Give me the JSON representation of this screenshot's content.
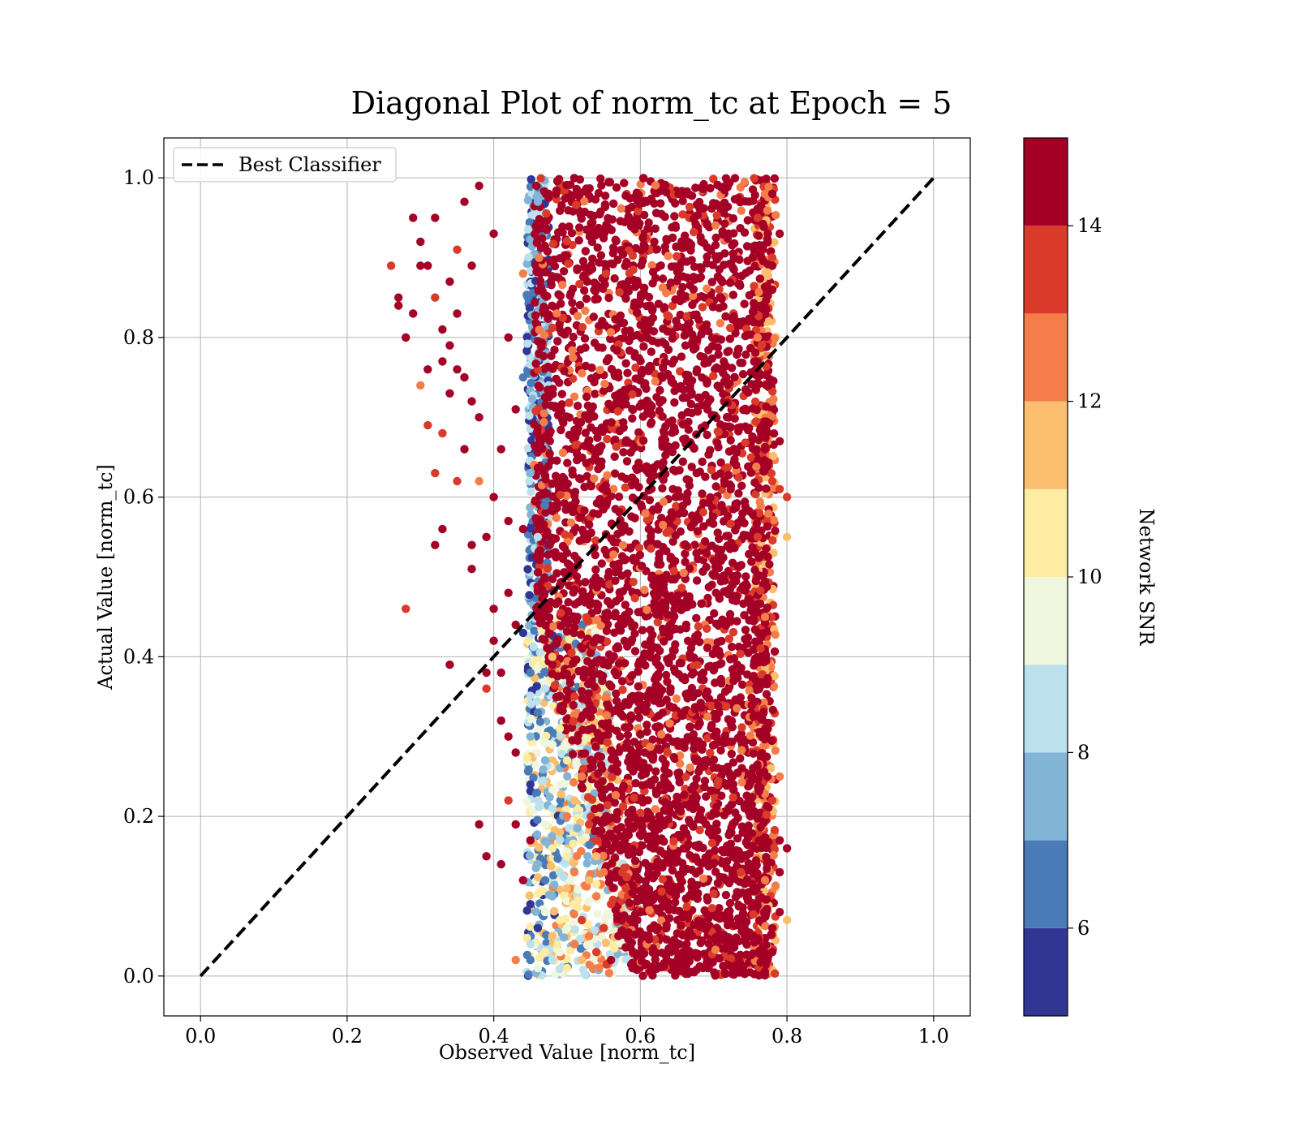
{
  "chart_data": {
    "type": "scatter",
    "title": "Diagonal Plot of norm_tc at Epoch = 5",
    "xlabel": "Observed Value [norm_tc]",
    "ylabel": "Actual Value [norm_tc]",
    "xlim": [
      -0.05,
      1.05
    ],
    "ylim": [
      -0.05,
      1.05
    ],
    "x_ticks": [
      "0.0",
      "0.2",
      "0.4",
      "0.6",
      "0.8",
      "1.0"
    ],
    "y_ticks": [
      "0.0",
      "0.2",
      "0.4",
      "0.6",
      "0.8",
      "1.0"
    ],
    "grid": true,
    "legend": {
      "position": "top-left",
      "entries": [
        "Best Classifier"
      ]
    },
    "reference_line": {
      "name": "Best Classifier",
      "style": "dashed",
      "color": "#000000",
      "x": [
        0,
        1
      ],
      "y": [
        0,
        1
      ]
    },
    "colorbar": {
      "label": "Network SNR",
      "range": [
        5,
        15
      ],
      "tick_labels": [
        "6",
        "8",
        "10",
        "12",
        "14"
      ],
      "bins": [
        {
          "from": 5,
          "to": 6,
          "color": "#313695"
        },
        {
          "from": 6,
          "to": 7,
          "color": "#4a7bb7"
        },
        {
          "from": 7,
          "to": 8,
          "color": "#82b4d6"
        },
        {
          "from": 8,
          "to": 9,
          "color": "#bde1ec"
        },
        {
          "from": 9,
          "to": 10,
          "color": "#eef7de"
        },
        {
          "from": 10,
          "to": 11,
          "color": "#fdeca2"
        },
        {
          "from": 11,
          "to": 12,
          "color": "#fbbe6e"
        },
        {
          "from": 12,
          "to": 13,
          "color": "#f57d4a"
        },
        {
          "from": 13,
          "to": 14,
          "color": "#d93a2a"
        },
        {
          "from": 14,
          "to": 15,
          "color": "#a50026"
        }
      ]
    },
    "scatter_regions": [
      {
        "name": "dense-core",
        "x_range": [
          0.44,
          0.78
        ],
        "y_range": [
          0.0,
          1.0
        ],
        "dominant_snr": "14+"
      },
      {
        "name": "low-snr-band",
        "x_range": [
          0.44,
          0.6
        ],
        "y_range": [
          0.0,
          0.45
        ],
        "dominant_snr": "5-11"
      },
      {
        "name": "upper-left-outliers",
        "x_range": [
          0.25,
          0.44
        ],
        "y_range": [
          0.45,
          1.0
        ],
        "dominant_snr": "12-15"
      }
    ],
    "points": [
      [
        0.26,
        0.89,
        13
      ],
      [
        0.27,
        0.85,
        15
      ],
      [
        0.27,
        0.84,
        15
      ],
      [
        0.28,
        0.8,
        15
      ],
      [
        0.28,
        0.46,
        13
      ],
      [
        0.29,
        0.95,
        15
      ],
      [
        0.29,
        0.83,
        15
      ],
      [
        0.3,
        0.92,
        15
      ],
      [
        0.3,
        0.89,
        15
      ],
      [
        0.3,
        0.74,
        12
      ],
      [
        0.31,
        0.76,
        15
      ],
      [
        0.31,
        0.89,
        15
      ],
      [
        0.31,
        0.69,
        13
      ],
      [
        0.32,
        0.54,
        15
      ],
      [
        0.32,
        0.63,
        13
      ],
      [
        0.32,
        0.95,
        15
      ],
      [
        0.32,
        0.85,
        13
      ],
      [
        0.33,
        0.81,
        15
      ],
      [
        0.33,
        0.77,
        15
      ],
      [
        0.33,
        0.68,
        13
      ],
      [
        0.33,
        0.56,
        15
      ],
      [
        0.34,
        0.79,
        15
      ],
      [
        0.34,
        0.39,
        15
      ],
      [
        0.34,
        0.73,
        15
      ],
      [
        0.34,
        0.87,
        15
      ],
      [
        0.35,
        0.91,
        13
      ],
      [
        0.35,
        0.62,
        13
      ],
      [
        0.35,
        0.76,
        15
      ],
      [
        0.35,
        0.83,
        15
      ],
      [
        0.36,
        0.66,
        15
      ],
      [
        0.36,
        0.97,
        15
      ],
      [
        0.36,
        0.75,
        15
      ],
      [
        0.37,
        0.51,
        15
      ],
      [
        0.37,
        0.54,
        15
      ],
      [
        0.37,
        0.72,
        15
      ],
      [
        0.37,
        0.89,
        15
      ],
      [
        0.38,
        0.19,
        15
      ],
      [
        0.38,
        0.62,
        12
      ],
      [
        0.38,
        0.7,
        15
      ],
      [
        0.38,
        0.99,
        15
      ],
      [
        0.39,
        0.15,
        15
      ],
      [
        0.39,
        0.36,
        13
      ],
      [
        0.39,
        0.38,
        15
      ],
      [
        0.39,
        0.55,
        15
      ],
      [
        0.4,
        0.42,
        15
      ],
      [
        0.4,
        0.46,
        15
      ],
      [
        0.4,
        0.6,
        15
      ],
      [
        0.4,
        0.93,
        15
      ],
      [
        0.41,
        0.14,
        15
      ],
      [
        0.41,
        0.32,
        15
      ],
      [
        0.41,
        0.38,
        15
      ],
      [
        0.41,
        0.66,
        15
      ],
      [
        0.42,
        0.22,
        13
      ],
      [
        0.42,
        0.3,
        15
      ],
      [
        0.42,
        0.48,
        15
      ],
      [
        0.42,
        0.57,
        15
      ],
      [
        0.42,
        0.8,
        15
      ],
      [
        0.43,
        0.02,
        12
      ],
      [
        0.43,
        0.19,
        15
      ],
      [
        0.43,
        0.28,
        15
      ],
      [
        0.43,
        0.44,
        15
      ],
      [
        0.43,
        0.71,
        15
      ],
      [
        0.44,
        0.12,
        15
      ],
      [
        0.44,
        0.43,
        5
      ],
      [
        0.44,
        0.56,
        15
      ],
      [
        0.44,
        0.75,
        6
      ],
      [
        0.44,
        0.88,
        12
      ],
      [
        0.45,
        0.02,
        6
      ],
      [
        0.45,
        0.04,
        8
      ],
      [
        0.45,
        0.09,
        5
      ],
      [
        0.45,
        0.17,
        15
      ],
      [
        0.45,
        0.24,
        5
      ],
      [
        0.45,
        0.3,
        7
      ],
      [
        0.45,
        0.38,
        6
      ],
      [
        0.45,
        0.63,
        7
      ],
      [
        0.46,
        0.01,
        9
      ],
      [
        0.46,
        0.06,
        5
      ],
      [
        0.46,
        0.14,
        7
      ],
      [
        0.46,
        0.22,
        8
      ],
      [
        0.46,
        0.33,
        6
      ],
      [
        0.46,
        0.45,
        15
      ],
      [
        0.46,
        0.55,
        8
      ],
      [
        0.46,
        0.97,
        7
      ],
      [
        0.47,
        0.03,
        10
      ],
      [
        0.47,
        0.08,
        9
      ],
      [
        0.47,
        0.12,
        6
      ],
      [
        0.47,
        0.19,
        9
      ],
      [
        0.47,
        0.27,
        7
      ],
      [
        0.47,
        0.36,
        8
      ],
      [
        0.47,
        0.59,
        6
      ],
      [
        0.48,
        0.02,
        8
      ],
      [
        0.48,
        0.05,
        11
      ],
      [
        0.48,
        0.1,
        7
      ],
      [
        0.48,
        0.16,
        10
      ],
      [
        0.48,
        0.21,
        8
      ],
      [
        0.48,
        0.29,
        9
      ],
      [
        0.48,
        0.4,
        11
      ],
      [
        0.49,
        0.03,
        9
      ],
      [
        0.49,
        0.07,
        10
      ],
      [
        0.49,
        0.13,
        8
      ],
      [
        0.49,
        0.18,
        11
      ],
      [
        0.49,
        0.24,
        9
      ],
      [
        0.49,
        0.31,
        10
      ],
      [
        0.5,
        0.01,
        10
      ],
      [
        0.5,
        0.06,
        9
      ],
      [
        0.5,
        0.11,
        11
      ],
      [
        0.5,
        0.15,
        10
      ],
      [
        0.5,
        0.2,
        12
      ],
      [
        0.5,
        0.27,
        10
      ],
      [
        0.51,
        0.04,
        12
      ],
      [
        0.51,
        0.09,
        10
      ],
      [
        0.51,
        0.13,
        12
      ],
      [
        0.51,
        0.22,
        11
      ],
      [
        0.51,
        0.35,
        13
      ],
      [
        0.52,
        0.02,
        11
      ],
      [
        0.52,
        0.07,
        13
      ],
      [
        0.52,
        0.17,
        10
      ],
      [
        0.52,
        0.25,
        12
      ],
      [
        0.53,
        0.05,
        12
      ],
      [
        0.53,
        0.12,
        11
      ],
      [
        0.53,
        0.19,
        13
      ],
      [
        0.54,
        0.03,
        13
      ],
      [
        0.54,
        0.1,
        12
      ],
      [
        0.54,
        0.15,
        11
      ],
      [
        0.55,
        0.06,
        13
      ],
      [
        0.55,
        0.13,
        12
      ],
      [
        0.56,
        0.02,
        14
      ],
      [
        0.56,
        0.09,
        13
      ],
      [
        0.57,
        0.05,
        14
      ],
      [
        0.58,
        0.11,
        13
      ],
      [
        0.59,
        0.03,
        14
      ],
      [
        0.6,
        0.08,
        14
      ],
      [
        0.76,
        0.95,
        13
      ],
      [
        0.76,
        0.8,
        12
      ],
      [
        0.76,
        0.55,
        13
      ],
      [
        0.77,
        0.3,
        14
      ],
      [
        0.77,
        0.12,
        12
      ],
      [
        0.77,
        0.98,
        12
      ],
      [
        0.77,
        0.66,
        14
      ],
      [
        0.77,
        0.45,
        12
      ],
      [
        0.78,
        0.9,
        13
      ],
      [
        0.78,
        0.72,
        12
      ],
      [
        0.78,
        0.22,
        13
      ],
      [
        0.78,
        0.06,
        14
      ],
      [
        0.78,
        0.62,
        13
      ],
      [
        0.78,
        0.98,
        15
      ],
      [
        0.78,
        0.89,
        15
      ],
      [
        0.79,
        0.93,
        15
      ],
      [
        0.79,
        0.61,
        13
      ],
      [
        0.79,
        0.17,
        15
      ],
      [
        0.79,
        0.13,
        15
      ],
      [
        0.79,
        0.67,
        15
      ],
      [
        0.79,
        0.08,
        15
      ],
      [
        0.8,
        0.16,
        15
      ],
      [
        0.8,
        0.6,
        13
      ],
      [
        0.8,
        0.55,
        11
      ],
      [
        0.8,
        0.07,
        11
      ],
      [
        0.78,
        0.86,
        15
      ],
      [
        0.78,
        0.03,
        15
      ],
      [
        0.79,
        0.25,
        12
      ]
    ]
  }
}
